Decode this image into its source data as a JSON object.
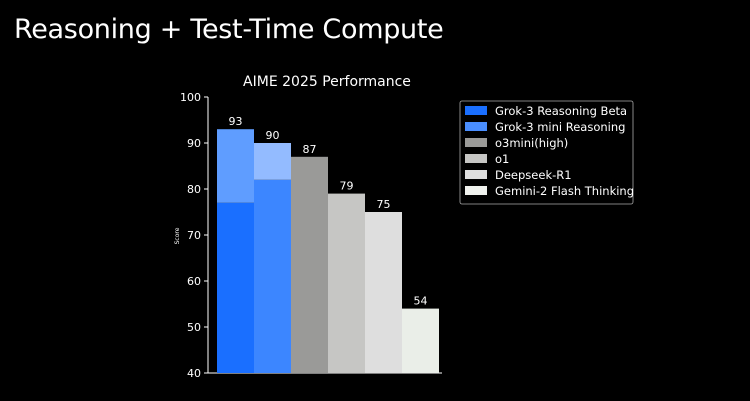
{
  "slide": {
    "title": "Reasoning + Test-Time Compute"
  },
  "chart_data": {
    "type": "bar",
    "title": "AIME 2025 Performance",
    "xlabel": "",
    "ylabel": "Score",
    "ylim": [
      40,
      100
    ],
    "yticks": [
      40,
      50,
      60,
      70,
      80,
      90,
      100
    ],
    "grid": false,
    "legend_position": "top-right",
    "categories": [
      "Grok-3 Reasoning Beta",
      "Grok-3 mini Reasoning",
      "o3mini(high)",
      "o1",
      "Deepseek-R1",
      "Gemini-2 Flash Thinking"
    ],
    "values": [
      93,
      90,
      87,
      79,
      75,
      54
    ],
    "stacked_base_values": [
      77,
      82,
      null,
      null,
      null,
      null
    ],
    "data_labels": [
      "93",
      "90",
      "87",
      "79",
      "75",
      "54"
    ],
    "colors": {
      "base": [
        "#1a6fff",
        "#3c86ff",
        "#9a9a98",
        "#c6c6c4",
        "#dedede",
        "#eaeee8"
      ],
      "top": [
        "#5f9dff",
        "#93bbff",
        null,
        null,
        null,
        null
      ],
      "legend": [
        "#1a6fff",
        "#4a8eff",
        "#9a9a98",
        "#c6c6c4",
        "#dedede",
        "#f0f2ee"
      ]
    },
    "legend": [
      "Grok-3 Reasoning Beta",
      "Grok-3 mini Reasoning",
      "o3mini(high)",
      "o1",
      "Deepseek-R1",
      "Gemini-2 Flash Thinking"
    ]
  }
}
